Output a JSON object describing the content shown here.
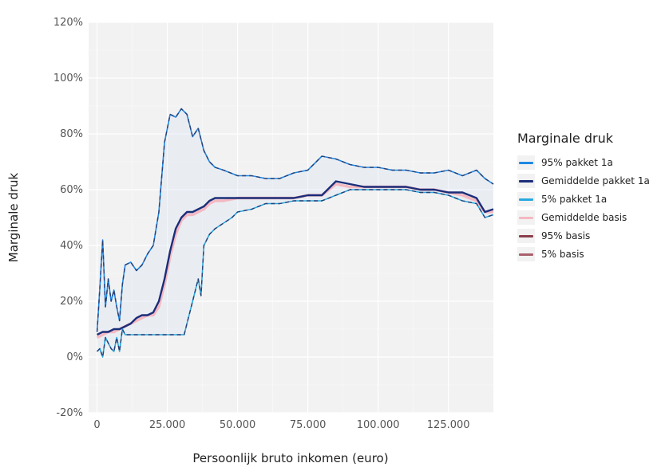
{
  "chart_data": {
    "type": "line",
    "title": "",
    "xlabel": "Persoonlijk bruto inkomen (euro)",
    "ylabel": "Marginale druk",
    "xlim": [
      -3000,
      141000
    ],
    "ylim": [
      -20,
      120
    ],
    "x_ticks": [
      0,
      25000,
      50000,
      75000,
      100000,
      125000
    ],
    "x_tick_labels": [
      "0",
      "25.000",
      "50.000",
      "75.000",
      "100.000",
      "125.000"
    ],
    "y_ticks": [
      -20,
      0,
      20,
      40,
      60,
      80,
      100,
      120
    ],
    "y_tick_labels": [
      "-20%",
      "0%",
      "20%",
      "40%",
      "60%",
      "80%",
      "100%",
      "120%"
    ],
    "grid": true,
    "legend_position": "right",
    "legend_title": "Marginale druk",
    "series": [
      {
        "name": "95% pakket 1a",
        "color": "#1e88e5",
        "dash": "solid",
        "x": [
          0,
          1000,
          2000,
          3000,
          4000,
          5000,
          6000,
          7000,
          8000,
          9000,
          10000,
          12000,
          14000,
          16000,
          18000,
          20000,
          22000,
          24000,
          26000,
          28000,
          30000,
          32000,
          34000,
          36000,
          38000,
          40000,
          42000,
          45000,
          50000,
          55000,
          60000,
          65000,
          70000,
          75000,
          80000,
          85000,
          90000,
          95000,
          100000,
          105000,
          110000,
          115000,
          120000,
          125000,
          130000,
          135000,
          138000,
          141000
        ],
        "values": [
          9,
          25,
          42,
          18,
          28,
          20,
          24,
          18,
          13,
          26,
          33,
          34,
          31,
          33,
          37,
          40,
          52,
          77,
          87,
          86,
          89,
          87,
          79,
          82,
          74,
          70,
          68,
          67,
          65,
          65,
          64,
          64,
          66,
          67,
          72,
          71,
          69,
          68,
          68,
          67,
          67,
          66,
          66,
          67,
          65,
          67,
          64,
          62
        ]
      },
      {
        "name": "Gemiddelde pakket 1a",
        "color": "#1a2e7a",
        "dash": "solid",
        "x": [
          0,
          2000,
          4000,
          6000,
          8000,
          10000,
          12000,
          14000,
          16000,
          18000,
          20000,
          22000,
          24000,
          26000,
          28000,
          30000,
          32000,
          34000,
          36000,
          38000,
          40000,
          42000,
          45000,
          50000,
          55000,
          60000,
          65000,
          70000,
          75000,
          80000,
          85000,
          90000,
          95000,
          100000,
          105000,
          110000,
          115000,
          120000,
          125000,
          130000,
          135000,
          138000,
          141000
        ],
        "values": [
          8,
          9,
          9,
          10,
          10,
          11,
          12,
          14,
          15,
          15,
          16,
          20,
          28,
          38,
          46,
          50,
          52,
          52,
          53,
          54,
          56,
          57,
          57,
          57,
          57,
          57,
          57,
          57,
          58,
          58,
          63,
          62,
          61,
          61,
          61,
          61,
          60,
          60,
          59,
          59,
          57,
          52,
          53
        ]
      },
      {
        "name": "5% pakket 1a",
        "color": "#29a8e0",
        "dash": "solid",
        "x": [
          0,
          1000,
          2000,
          3000,
          4000,
          5000,
          6000,
          7000,
          8000,
          9000,
          10000,
          14000,
          18000,
          22000,
          25000,
          28000,
          31000,
          32000,
          34000,
          36000,
          37000,
          38000,
          40000,
          42000,
          45000,
          48000,
          50000,
          55000,
          60000,
          65000,
          70000,
          75000,
          80000,
          85000,
          90000,
          95000,
          100000,
          105000,
          110000,
          115000,
          120000,
          125000,
          130000,
          135000,
          138000,
          141000
        ],
        "values": [
          2,
          3,
          0,
          7,
          5,
          3,
          2,
          7,
          2,
          10,
          8,
          8,
          8,
          8,
          8,
          8,
          8,
          12,
          20,
          28,
          22,
          40,
          44,
          46,
          48,
          50,
          52,
          53,
          55,
          55,
          56,
          56,
          56,
          58,
          60,
          60,
          60,
          60,
          60,
          59,
          59,
          58,
          56,
          55,
          50,
          51
        ]
      },
      {
        "name": "Gemiddelde basis",
        "color": "#f4b9c2",
        "dash": "solid",
        "x": [
          0,
          2000,
          4000,
          6000,
          8000,
          10000,
          12000,
          14000,
          16000,
          18000,
          20000,
          22000,
          24000,
          26000,
          28000,
          30000,
          32000,
          34000,
          36000,
          38000,
          40000,
          42000,
          45000,
          50000,
          55000,
          60000,
          65000,
          70000,
          75000,
          80000,
          85000,
          90000,
          95000,
          100000,
          105000,
          110000,
          115000,
          120000,
          125000,
          130000,
          135000,
          138000,
          141000
        ],
        "values": [
          7,
          8,
          9,
          9,
          10,
          11,
          12,
          13,
          14,
          15,
          15,
          18,
          26,
          36,
          44,
          49,
          51,
          51,
          52,
          53,
          55,
          56,
          56,
          57,
          57,
          57,
          57,
          57,
          58,
          58,
          62,
          61,
          61,
          61,
          61,
          61,
          60,
          60,
          59,
          58,
          56,
          52,
          52
        ]
      },
      {
        "name": "95% basis",
        "color": "#8a3f4b",
        "dash": "solid",
        "x": [],
        "values": []
      },
      {
        "name": "5% basis",
        "color": "#a8606c",
        "dash": "solid",
        "x": [],
        "values": []
      }
    ]
  }
}
